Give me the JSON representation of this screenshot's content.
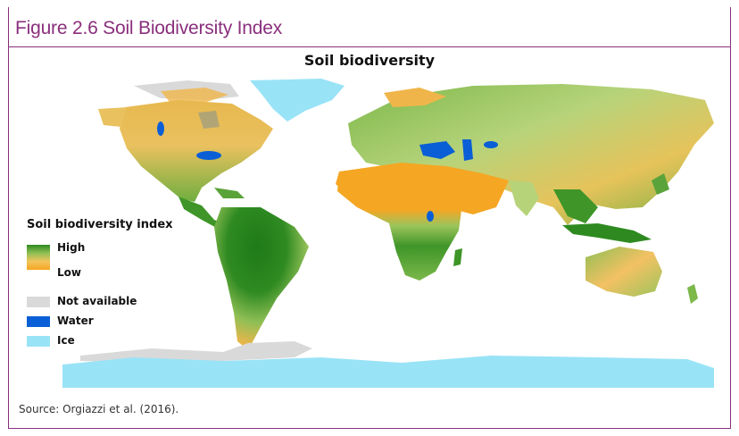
{
  "figure": {
    "title": "Figure 2.6 Soil Biodiversity Index",
    "source": "Source: Orgiazzi et al. (2016)."
  },
  "map": {
    "title": "Soil biodiversity"
  },
  "legend": {
    "title": "Soil biodiversity index",
    "high_label": "High",
    "low_label": "Low",
    "items": [
      {
        "label": "Not available",
        "color": "#d9d9d9"
      },
      {
        "label": "Water",
        "color": "#0a5fd6"
      },
      {
        "label": "Ice",
        "color": "#99e3f7"
      }
    ],
    "gradient_colors": [
      "#2e8a20",
      "#f5a623"
    ]
  },
  "colors": {
    "accent": "#8a2f7c",
    "high": "#2e8a20",
    "mid": "#9cc45c",
    "low": "#f5a623",
    "water": "#0a5fd6",
    "ice": "#99e3f7",
    "not_available": "#d9d9d9"
  }
}
